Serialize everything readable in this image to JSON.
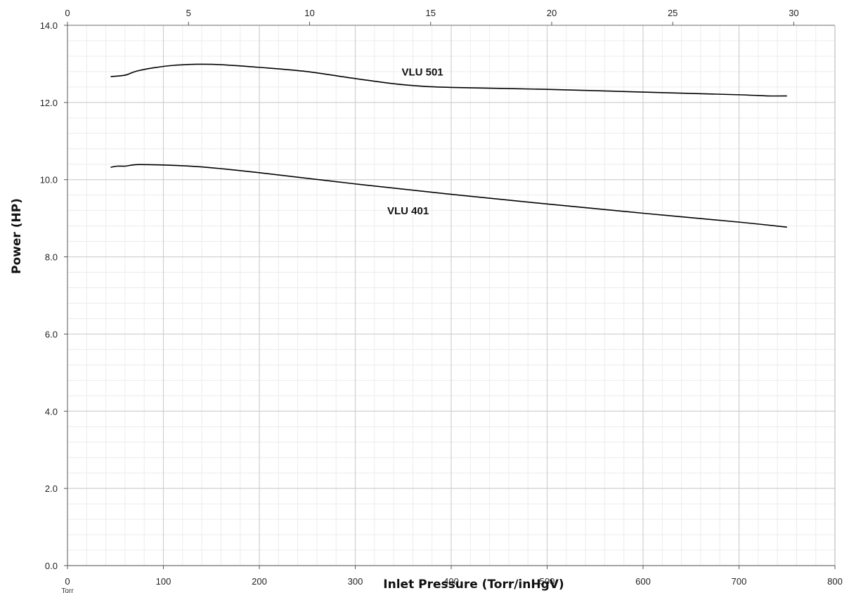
{
  "chart_data": {
    "type": "line",
    "xlabel": "Inlet Pressure (Torr/inHgV)",
    "ylabel": "Power (HP)",
    "x_unit_label": "Torr",
    "xlim": [
      0,
      800
    ],
    "ylim": [
      0,
      14
    ],
    "x_ticks": [
      0,
      100,
      200,
      300,
      400,
      500,
      600,
      700,
      800
    ],
    "x_tick_labels": [
      "0",
      "100",
      "200",
      "300",
      "400",
      "500",
      "600",
      "700",
      "800"
    ],
    "x2_ticks": [
      0,
      5,
      10,
      15,
      20,
      25,
      30
    ],
    "x2_tick_labels": [
      "0",
      "5",
      "10",
      "15",
      "20",
      "25",
      "30"
    ],
    "x2lim": [
      0,
      31.7
    ],
    "y_ticks": [
      0,
      2,
      4,
      6,
      8,
      10,
      12,
      14
    ],
    "y_tick_labels": [
      "0.0",
      "2.0",
      "4.0",
      "6.0",
      "8.0",
      "10.0",
      "12.0",
      "14.0"
    ],
    "grid": true,
    "line_color": "#000000",
    "grid_major_color": "#cfcfcf",
    "grid_minor_color": "#ececec",
    "series": [
      {
        "name": "VLU 501",
        "label_at": [
          370,
          12.7
        ],
        "x": [
          45,
          55,
          62,
          68,
          75,
          90,
          110,
          135,
          160,
          200,
          250,
          300,
          350,
          400,
          500,
          600,
          700,
          730,
          750
        ],
        "y": [
          12.67,
          12.69,
          12.72,
          12.78,
          12.83,
          12.9,
          12.96,
          12.99,
          12.98,
          12.91,
          12.8,
          12.62,
          12.46,
          12.39,
          12.34,
          12.27,
          12.2,
          12.17,
          12.17
        ]
      },
      {
        "name": "VLU 401",
        "label_at": [
          355,
          9.1
        ],
        "x": [
          45,
          52,
          60,
          65,
          72,
          80,
          100,
          140,
          200,
          300,
          400,
          500,
          600,
          700,
          750
        ],
        "y": [
          10.32,
          10.35,
          10.35,
          10.37,
          10.39,
          10.39,
          10.38,
          10.33,
          10.18,
          9.89,
          9.62,
          9.37,
          9.13,
          8.9,
          8.77
        ]
      }
    ]
  }
}
